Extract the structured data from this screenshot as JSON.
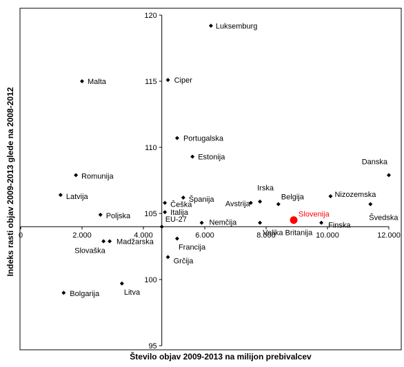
{
  "chart_data": {
    "type": "scatter",
    "title": "",
    "xlabel": "Število objav 2009-2013 na milijon prebivalcev",
    "ylabel": "Indeks rasti objav 2009-2013 glede na 2008-2012",
    "xlim": [
      0,
      12000
    ],
    "ylim": [
      95,
      120
    ],
    "x_ticks": [
      0,
      2000,
      4000,
      6000,
      8000,
      10000,
      12000
    ],
    "x_tick_labels": [
      "0",
      "2.000",
      "4.000",
      "6.000",
      "8.000",
      "10.000",
      "12.000"
    ],
    "y_ticks": [
      95,
      100,
      105,
      110,
      115,
      120
    ],
    "y_tick_labels": [
      "95",
      "100",
      "105",
      "110",
      "115",
      "120"
    ],
    "x_axis_crosses_y_at": 104,
    "y_axis_crosses_x_at": 4600,
    "grid": false,
    "highlight_color": "#ff0000",
    "points": [
      {
        "name": "Luksemburg",
        "x": 6200,
        "y": 119.2
      },
      {
        "name": "Malta",
        "x": 2000,
        "y": 115.0
      },
      {
        "name": "Ciper",
        "x": 4800,
        "y": 115.1
      },
      {
        "name": "Portugalska",
        "x": 5100,
        "y": 110.7
      },
      {
        "name": "Estonija",
        "x": 5600,
        "y": 109.3
      },
      {
        "name": "Danska",
        "x": 12000,
        "y": 107.9
      },
      {
        "name": "Romunija",
        "x": 1800,
        "y": 107.9
      },
      {
        "name": "Latvija",
        "x": 1300,
        "y": 106.4
      },
      {
        "name": "Nizozemska",
        "x": 10100,
        "y": 106.3
      },
      {
        "name": "Španija",
        "x": 5300,
        "y": 106.2
      },
      {
        "name": "Irska",
        "x": 7800,
        "y": 105.9
      },
      {
        "name": "Češka",
        "x": 4700,
        "y": 105.8
      },
      {
        "name": "Belgija",
        "x": 8400,
        "y": 105.7
      },
      {
        "name": "Švedska",
        "x": 11400,
        "y": 105.7
      },
      {
        "name": "Avstrija",
        "x": 7500,
        "y": 105.8
      },
      {
        "name": "Italija",
        "x": 4700,
        "y": 105.1
      },
      {
        "name": "Poljska",
        "x": 2600,
        "y": 104.9
      },
      {
        "name": "EU-27",
        "x": 4600,
        "y": 104.0
      },
      {
        "name": "Nemčija",
        "x": 5900,
        "y": 104.3
      },
      {
        "name": "Velika Britanija",
        "x": 7800,
        "y": 104.3
      },
      {
        "name": "Slovenija",
        "x": 8900,
        "y": 104.5,
        "highlight": true
      },
      {
        "name": "Finska",
        "x": 9800,
        "y": 104.3
      },
      {
        "name": "Madžarska",
        "x": 2900,
        "y": 102.9
      },
      {
        "name": "Slovaška",
        "x": 2700,
        "y": 102.9
      },
      {
        "name": "Francija",
        "x": 5100,
        "y": 103.1
      },
      {
        "name": "Grčija",
        "x": 4800,
        "y": 101.7
      },
      {
        "name": "Litva",
        "x": 3300,
        "y": 99.7
      },
      {
        "name": "Bolgarija",
        "x": 1400,
        "y": 99.0
      }
    ]
  }
}
